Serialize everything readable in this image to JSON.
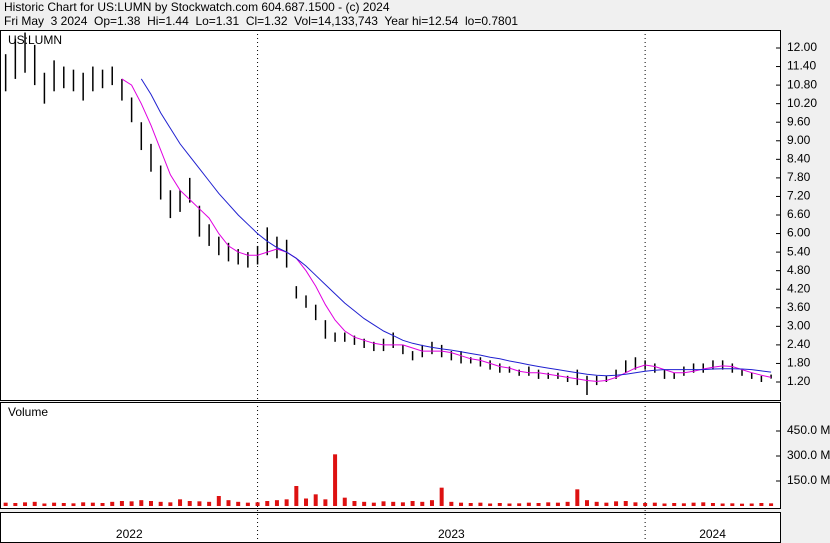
{
  "chart_data": {
    "type": "stock",
    "title": "Historic Chart for US:LUMN by Stockwatch.com 604.687.1500 - (c) 2024",
    "subtitle": "Fri May  3 2024  Op=1.38  Hi=1.44  Lo=1.31  Cl=1.32  Vol=14,133,743  Year hi=12.54  lo=0.7801",
    "symbol": "US:LUMN",
    "xlim": [
      2022.338,
      2024.348
    ],
    "xticks": [
      2022,
      2023,
      2024
    ],
    "ylim": [
      0.618,
      12.582
    ],
    "yticks": [
      {
        "value": 1.2,
        "label": "1.20"
      },
      {
        "value": 1.8,
        "label": "1.80"
      },
      {
        "value": 2.4,
        "label": "2.40"
      },
      {
        "value": 3.0,
        "label": "3.00"
      },
      {
        "value": 3.6,
        "label": "3.60"
      },
      {
        "value": 4.2,
        "label": "4.20"
      },
      {
        "value": 4.8,
        "label": "4.80"
      },
      {
        "value": 5.4,
        "label": "5.40"
      },
      {
        "value": 6.0,
        "label": "6.00"
      },
      {
        "value": 6.6,
        "label": "6.60"
      },
      {
        "value": 7.2,
        "label": "7.20"
      },
      {
        "value": 7.8,
        "label": "7.80"
      },
      {
        "value": 8.4,
        "label": "8.40"
      },
      {
        "value": 9.0,
        "label": "9.00"
      },
      {
        "value": 9.6,
        "label": "9.60"
      },
      {
        "value": 10.2,
        "label": "10.20"
      },
      {
        "value": 10.8,
        "label": "10.80"
      },
      {
        "value": 11.4,
        "label": "11.40"
      },
      {
        "value": 12.0,
        "label": "12.00"
      }
    ],
    "x": [
      2022.35,
      2022.375,
      2022.4,
      2022.425,
      2022.45,
      2022.475,
      2022.5,
      2022.525,
      2022.55,
      2022.575,
      2022.6,
      2022.625,
      2022.65,
      2022.675,
      2022.7,
      2022.725,
      2022.75,
      2022.775,
      2022.8,
      2022.825,
      2022.85,
      2022.875,
      2022.9,
      2022.925,
      2022.95,
      2022.975,
      2023.0,
      2023.025,
      2023.05,
      2023.075,
      2023.1,
      2023.125,
      2023.15,
      2023.175,
      2023.2,
      2023.225,
      2023.25,
      2023.275,
      2023.3,
      2023.325,
      2023.35,
      2023.375,
      2023.4,
      2023.425,
      2023.45,
      2023.475,
      2023.5,
      2023.525,
      2023.55,
      2023.575,
      2023.6,
      2023.625,
      2023.65,
      2023.675,
      2023.7,
      2023.725,
      2023.75,
      2023.775,
      2023.8,
      2023.825,
      2023.85,
      2023.875,
      2023.9,
      2023.925,
      2023.95,
      2023.975,
      2024.0,
      2024.025,
      2024.05,
      2024.075,
      2024.1,
      2024.125,
      2024.15,
      2024.175,
      2024.2,
      2024.225,
      2024.25,
      2024.275,
      2024.3,
      2024.325
    ],
    "price_color": "#000000",
    "high": [
      11.8,
      12.3,
      12.5,
      12.1,
      11.2,
      11.6,
      11.4,
      11.3,
      11.2,
      11.4,
      11.3,
      11.4,
      11.0,
      10.4,
      9.6,
      8.9,
      8.2,
      7.4,
      7.4,
      7.8,
      6.9,
      6.3,
      5.9,
      5.7,
      5.5,
      5.4,
      5.6,
      6.2,
      5.9,
      5.8,
      4.3,
      4.0,
      3.7,
      3.2,
      2.8,
      2.8,
      2.7,
      2.6,
      2.5,
      2.6,
      2.8,
      2.4,
      2.2,
      2.4,
      2.5,
      2.4,
      2.2,
      2.2,
      2.0,
      2.0,
      1.9,
      1.8,
      1.7,
      1.6,
      1.7,
      1.6,
      1.5,
      1.5,
      1.4,
      1.6,
      1.4,
      1.4,
      1.4,
      1.6,
      1.9,
      2.0,
      1.9,
      1.8,
      1.6,
      1.5,
      1.7,
      1.8,
      1.8,
      1.9,
      1.9,
      1.8,
      1.6,
      1.5,
      1.4,
      1.44
    ],
    "low": [
      10.6,
      11.0,
      11.2,
      10.8,
      10.2,
      10.6,
      10.7,
      10.6,
      10.3,
      10.6,
      10.7,
      10.8,
      10.3,
      9.6,
      8.7,
      8.0,
      7.1,
      6.5,
      6.7,
      7.0,
      5.9,
      5.6,
      5.3,
      5.1,
      5.0,
      4.9,
      5.0,
      5.3,
      5.2,
      4.9,
      3.9,
      3.6,
      3.2,
      2.6,
      2.5,
      2.5,
      2.4,
      2.3,
      2.2,
      2.2,
      2.3,
      2.1,
      1.9,
      2.0,
      2.1,
      2.0,
      1.9,
      1.8,
      1.8,
      1.7,
      1.6,
      1.5,
      1.5,
      1.4,
      1.4,
      1.3,
      1.3,
      1.3,
      1.2,
      1.1,
      0.78,
      1.1,
      1.2,
      1.3,
      1.5,
      1.6,
      1.6,
      1.5,
      1.3,
      1.3,
      1.4,
      1.5,
      1.5,
      1.6,
      1.6,
      1.5,
      1.4,
      1.3,
      1.2,
      1.31
    ],
    "ma_fast": {
      "color": "#e000e0",
      "values": [
        null,
        null,
        null,
        null,
        null,
        null,
        null,
        null,
        null,
        null,
        null,
        null,
        11.0,
        10.8,
        10.2,
        9.5,
        8.7,
        7.9,
        7.4,
        7.1,
        6.8,
        6.5,
        6.0,
        5.6,
        5.4,
        5.3,
        5.3,
        5.4,
        5.5,
        5.4,
        5.2,
        4.8,
        4.3,
        3.7,
        3.2,
        2.85,
        2.65,
        2.55,
        2.45,
        2.4,
        2.4,
        2.4,
        2.3,
        2.2,
        2.2,
        2.2,
        2.15,
        2.05,
        1.95,
        1.9,
        1.8,
        1.7,
        1.65,
        1.55,
        1.5,
        1.5,
        1.45,
        1.4,
        1.35,
        1.3,
        1.25,
        1.22,
        1.25,
        1.35,
        1.5,
        1.65,
        1.75,
        1.7,
        1.6,
        1.5,
        1.5,
        1.55,
        1.62,
        1.68,
        1.72,
        1.7,
        1.6,
        1.5,
        1.42,
        1.35
      ]
    },
    "ma_slow": {
      "color": "#2020d0",
      "values": [
        null,
        null,
        null,
        null,
        null,
        null,
        null,
        null,
        null,
        null,
        null,
        null,
        null,
        null,
        11.0,
        10.5,
        9.9,
        9.4,
        8.9,
        8.5,
        8.1,
        7.7,
        7.3,
        6.95,
        6.6,
        6.3,
        6.0,
        5.75,
        5.55,
        5.4,
        5.2,
        4.95,
        4.65,
        4.35,
        4.05,
        3.75,
        3.5,
        3.25,
        3.05,
        2.85,
        2.7,
        2.55,
        2.45,
        2.38,
        2.32,
        2.27,
        2.23,
        2.18,
        2.12,
        2.07,
        2.0,
        1.95,
        1.88,
        1.82,
        1.76,
        1.7,
        1.65,
        1.6,
        1.55,
        1.5,
        1.45,
        1.42,
        1.4,
        1.42,
        1.45,
        1.5,
        1.55,
        1.58,
        1.6,
        1.6,
        1.6,
        1.6,
        1.6,
        1.62,
        1.63,
        1.63,
        1.62,
        1.6,
        1.56,
        1.52
      ]
    },
    "volume": {
      "label": "Volume",
      "color": "#dd1111",
      "ylim": [
        0,
        624
      ],
      "yticks": [
        {
          "value": 150,
          "label": "150.0 M"
        },
        {
          "value": 300,
          "label": "300.0 M"
        },
        {
          "value": 450,
          "label": "450.0 M"
        }
      ],
      "values": [
        20,
        18,
        22,
        25,
        15,
        20,
        18,
        16,
        22,
        20,
        18,
        25,
        30,
        28,
        35,
        30,
        25,
        22,
        40,
        30,
        28,
        25,
        60,
        35,
        25,
        20,
        22,
        30,
        35,
        40,
        120,
        45,
        70,
        40,
        310,
        50,
        30,
        25,
        20,
        28,
        25,
        22,
        30,
        25,
        35,
        110,
        25,
        20,
        18,
        20,
        15,
        18,
        15,
        16,
        20,
        18,
        22,
        20,
        25,
        100,
        35,
        25,
        20,
        28,
        30,
        22,
        18,
        20,
        15,
        18,
        16,
        20,
        22,
        18,
        15,
        16,
        14,
        15,
        18,
        16
      ]
    }
  }
}
